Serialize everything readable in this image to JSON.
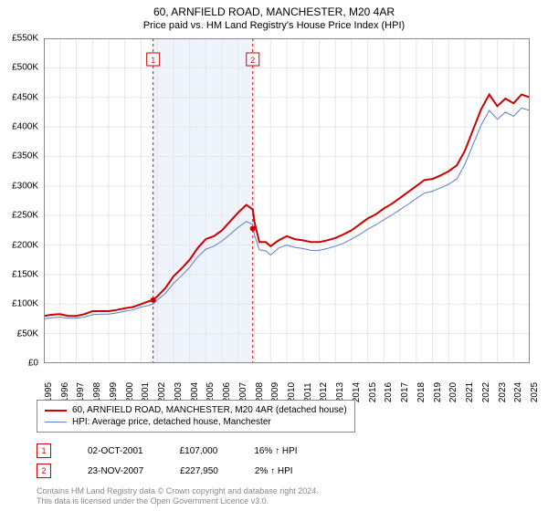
{
  "title": "60, ARNFIELD ROAD, MANCHESTER, M20 4AR",
  "subtitle": "Price paid vs. HM Land Registry's House Price Index (HPI)",
  "yaxis": {
    "min": 0,
    "max": 550,
    "step": 50,
    "labels": [
      "£0",
      "£50K",
      "£100K",
      "£150K",
      "£200K",
      "£250K",
      "£300K",
      "£350K",
      "£400K",
      "£450K",
      "£500K",
      "£550K"
    ]
  },
  "xaxis": {
    "min": 1995,
    "max": 2025,
    "labels": [
      "1995",
      "1996",
      "1997",
      "1998",
      "1999",
      "2000",
      "2001",
      "2002",
      "2003",
      "2004",
      "2005",
      "2006",
      "2007",
      "2008",
      "2009",
      "2010",
      "2011",
      "2012",
      "2013",
      "2014",
      "2015",
      "2016",
      "2017",
      "2018",
      "2019",
      "2020",
      "2021",
      "2022",
      "2023",
      "2024",
      "2025"
    ]
  },
  "grid_color": "#e6e6e6",
  "plot_border_color": "#888888",
  "background_color": "#ffffff",
  "shade": {
    "from": 2001.75,
    "to": 2007.9,
    "color": "#eef3fc"
  },
  "markers": [
    {
      "year": 2001.75,
      "label": "1",
      "border": "#cc0000"
    },
    {
      "year": 2007.9,
      "label": "2",
      "border": "#cc0000"
    }
  ],
  "series": [
    {
      "name": "60, ARNFIELD ROAD, MANCHESTER, M20 4AR (detached house)",
      "color": "#cc0000",
      "width": 2,
      "points": [
        [
          1995,
          80
        ],
        [
          1995.5,
          82
        ],
        [
          1996,
          83
        ],
        [
          1996.5,
          80
        ],
        [
          1997,
          80
        ],
        [
          1997.5,
          83
        ],
        [
          1998,
          88
        ],
        [
          1998.5,
          88
        ],
        [
          1999,
          88
        ],
        [
          1999.5,
          90
        ],
        [
          2000,
          93
        ],
        [
          2000.5,
          95
        ],
        [
          2001,
          100
        ],
        [
          2001.5,
          105
        ],
        [
          2001.75,
          107
        ],
        [
          2002,
          113
        ],
        [
          2002.5,
          127
        ],
        [
          2003,
          147
        ],
        [
          2003.5,
          160
        ],
        [
          2004,
          175
        ],
        [
          2004.5,
          195
        ],
        [
          2005,
          210
        ],
        [
          2005.5,
          215
        ],
        [
          2006,
          225
        ],
        [
          2006.5,
          240
        ],
        [
          2007,
          255
        ],
        [
          2007.5,
          268
        ],
        [
          2007.9,
          260
        ],
        [
          2008,
          240
        ],
        [
          2008.3,
          205
        ],
        [
          2008.7,
          205
        ],
        [
          2009,
          198
        ],
        [
          2009.5,
          208
        ],
        [
          2010,
          215
        ],
        [
          2010.5,
          210
        ],
        [
          2011,
          208
        ],
        [
          2011.5,
          205
        ],
        [
          2012,
          205
        ],
        [
          2012.5,
          208
        ],
        [
          2013,
          212
        ],
        [
          2013.5,
          218
        ],
        [
          2014,
          225
        ],
        [
          2014.5,
          235
        ],
        [
          2015,
          245
        ],
        [
          2015.5,
          252
        ],
        [
          2016,
          262
        ],
        [
          2016.5,
          270
        ],
        [
          2017,
          280
        ],
        [
          2017.5,
          290
        ],
        [
          2018,
          300
        ],
        [
          2018.5,
          310
        ],
        [
          2019,
          312
        ],
        [
          2019.5,
          318
        ],
        [
          2020,
          325
        ],
        [
          2020.5,
          335
        ],
        [
          2021,
          360
        ],
        [
          2021.5,
          395
        ],
        [
          2022,
          430
        ],
        [
          2022.5,
          455
        ],
        [
          2023,
          435
        ],
        [
          2023.5,
          448
        ],
        [
          2024,
          440
        ],
        [
          2024.5,
          455
        ],
        [
          2025,
          450
        ]
      ]
    },
    {
      "name": "HPI: Average price, detached house, Manchester",
      "color": "#5b7fc7",
      "width": 1,
      "points": [
        [
          1995,
          75
        ],
        [
          1995.5,
          77
        ],
        [
          1996,
          78
        ],
        [
          1996.5,
          76
        ],
        [
          1997,
          76
        ],
        [
          1997.5,
          78
        ],
        [
          1998,
          82
        ],
        [
          1998.5,
          83
        ],
        [
          1999,
          83
        ],
        [
          1999.5,
          85
        ],
        [
          2000,
          88
        ],
        [
          2000.5,
          90
        ],
        [
          2001,
          95
        ],
        [
          2001.5,
          98
        ],
        [
          2001.75,
          100
        ],
        [
          2002,
          107
        ],
        [
          2002.5,
          118
        ],
        [
          2003,
          135
        ],
        [
          2003.5,
          148
        ],
        [
          2004,
          162
        ],
        [
          2004.5,
          180
        ],
        [
          2005,
          193
        ],
        [
          2005.5,
          198
        ],
        [
          2006,
          207
        ],
        [
          2006.5,
          218
        ],
        [
          2007,
          230
        ],
        [
          2007.5,
          240
        ],
        [
          2007.9,
          235
        ],
        [
          2008,
          218
        ],
        [
          2008.3,
          192
        ],
        [
          2008.7,
          190
        ],
        [
          2009,
          183
        ],
        [
          2009.5,
          195
        ],
        [
          2010,
          200
        ],
        [
          2010.5,
          196
        ],
        [
          2011,
          194
        ],
        [
          2011.5,
          191
        ],
        [
          2012,
          191
        ],
        [
          2012.5,
          194
        ],
        [
          2013,
          198
        ],
        [
          2013.5,
          203
        ],
        [
          2014,
          210
        ],
        [
          2014.5,
          218
        ],
        [
          2015,
          227
        ],
        [
          2015.5,
          234
        ],
        [
          2016,
          243
        ],
        [
          2016.5,
          251
        ],
        [
          2017,
          260
        ],
        [
          2017.5,
          269
        ],
        [
          2018,
          279
        ],
        [
          2018.5,
          288
        ],
        [
          2019,
          291
        ],
        [
          2019.5,
          297
        ],
        [
          2020,
          303
        ],
        [
          2020.5,
          312
        ],
        [
          2021,
          337
        ],
        [
          2021.5,
          370
        ],
        [
          2022,
          403
        ],
        [
          2022.5,
          428
        ],
        [
          2023,
          413
        ],
        [
          2023.5,
          425
        ],
        [
          2024,
          418
        ],
        [
          2024.5,
          432
        ],
        [
          2025,
          428
        ]
      ]
    }
  ],
  "sale_points": [
    {
      "year": 2001.75,
      "value": 107,
      "color": "#cc0000"
    },
    {
      "year": 2007.9,
      "value": 227.95,
      "color": "#cc0000"
    }
  ],
  "legend": {
    "items": [
      {
        "color": "#cc0000",
        "label": "60, ARNFIELD ROAD, MANCHESTER, M20 4AR (detached house)",
        "width": 2
      },
      {
        "color": "#5b7fc7",
        "label": "HPI: Average price, detached house, Manchester",
        "width": 1
      }
    ]
  },
  "sales": [
    {
      "num": "1",
      "date": "02-OCT-2001",
      "price": "£107,000",
      "hpi": "16% ↑ HPI"
    },
    {
      "num": "2",
      "date": "23-NOV-2007",
      "price": "£227,950",
      "hpi": "2% ↑ HPI"
    }
  ],
  "footnote1": "Contains HM Land Registry data © Crown copyright and database right 2024.",
  "footnote2": "This data is licensed under the Open Government Licence v3.0."
}
